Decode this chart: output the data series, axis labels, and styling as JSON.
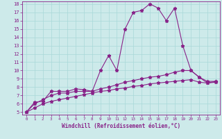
{
  "xlabel": "Windchill (Refroidissement éolien,°C)",
  "bg_color": "#cdeaea",
  "grid_color": "#a8d8d8",
  "line_color": "#882288",
  "xlim": [
    -0.5,
    23.5
  ],
  "ylim": [
    4.7,
    18.3
  ],
  "xticks": [
    0,
    1,
    2,
    3,
    4,
    5,
    6,
    7,
    8,
    9,
    10,
    11,
    12,
    13,
    14,
    15,
    16,
    17,
    18,
    19,
    20,
    21,
    22,
    23
  ],
  "yticks": [
    5,
    6,
    7,
    8,
    9,
    10,
    11,
    12,
    13,
    14,
    15,
    16,
    17,
    18
  ],
  "line1_x": [
    0,
    1,
    2,
    3,
    4,
    5,
    6,
    7,
    8,
    9,
    10,
    11,
    12,
    13,
    14,
    15,
    16,
    17,
    18,
    19,
    20,
    21,
    22,
    23
  ],
  "line1_y": [
    5.0,
    6.2,
    6.3,
    7.5,
    7.5,
    7.5,
    7.8,
    7.7,
    7.5,
    10.0,
    11.8,
    10.0,
    15.0,
    17.0,
    17.2,
    18.0,
    17.5,
    16.0,
    17.5,
    13.0,
    10.0,
    9.2,
    8.5,
    8.7
  ],
  "line2_x": [
    0,
    1,
    2,
    3,
    4,
    5,
    6,
    7,
    8,
    9,
    10,
    11,
    12,
    13,
    14,
    15,
    16,
    17,
    18,
    19,
    20,
    21,
    22,
    23
  ],
  "line2_y": [
    5.0,
    6.0,
    6.5,
    7.0,
    7.3,
    7.3,
    7.5,
    7.5,
    7.5,
    7.8,
    8.0,
    8.3,
    8.6,
    8.8,
    9.0,
    9.2,
    9.3,
    9.5,
    9.8,
    10.0,
    10.0,
    9.2,
    8.7,
    8.7
  ],
  "line3_x": [
    0,
    1,
    2,
    3,
    4,
    5,
    6,
    7,
    8,
    9,
    10,
    11,
    12,
    13,
    14,
    15,
    16,
    17,
    18,
    19,
    20,
    21,
    22,
    23
  ],
  "line3_y": [
    5.0,
    5.5,
    6.0,
    6.3,
    6.5,
    6.7,
    6.9,
    7.1,
    7.3,
    7.5,
    7.6,
    7.8,
    7.9,
    8.1,
    8.2,
    8.4,
    8.5,
    8.6,
    8.7,
    8.8,
    8.9,
    8.6,
    8.5,
    8.6
  ]
}
